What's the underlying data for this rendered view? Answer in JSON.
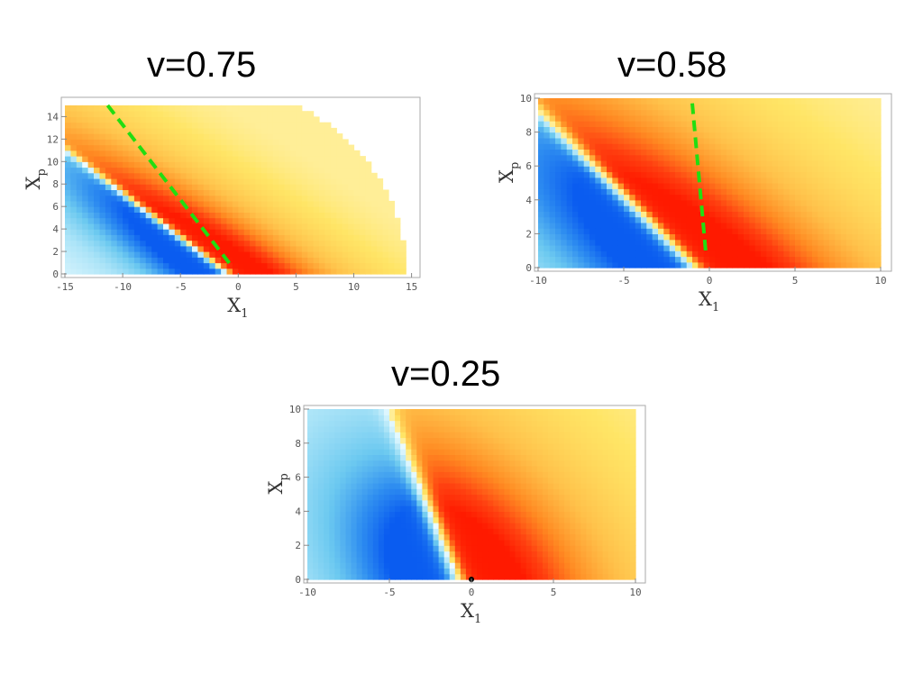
{
  "chart_data": [
    {
      "type": "heatmap",
      "title": "v=0.75",
      "xlabel": "X",
      "xlabel_sub": "1",
      "ylabel": "X",
      "ylabel_sub": "p",
      "xlim": [
        -15,
        15
      ],
      "ylim": [
        0,
        15
      ],
      "xticks": [
        "-15",
        "-10",
        "-5",
        "0",
        "5",
        "10",
        "15"
      ],
      "yticks": [
        "0",
        "2",
        "4",
        "6",
        "8",
        "10",
        "12",
        "14"
      ],
      "xtick_values": [
        -15,
        -10,
        -5,
        0,
        5,
        10,
        15
      ],
      "ytick_values": [
        0,
        2,
        4,
        6,
        8,
        10,
        12,
        14
      ],
      "velocity": 0.75,
      "cone_outer_radius": 16.5,
      "dashed_line": {
        "color": "#22dd11",
        "x": [
          -11.3,
          -0.5
        ],
        "y": [
          15,
          0.6
        ]
      },
      "colors": {
        "negative": "#0a5cf0",
        "positive": "#ff1a00",
        "far_positive": "#ffe566",
        "far_negative": "#eefcff",
        "dashed": "#22dd11"
      }
    },
    {
      "type": "heatmap",
      "title": "v=0.58",
      "xlabel": "X",
      "xlabel_sub": "1",
      "ylabel": "X",
      "ylabel_sub": "p",
      "xlim": [
        -10,
        10
      ],
      "ylim": [
        0,
        10
      ],
      "xticks": [
        "-10",
        "-5",
        "0",
        "5",
        "10"
      ],
      "yticks": [
        "0",
        "2",
        "4",
        "6",
        "8",
        "10"
      ],
      "xtick_values": [
        -10,
        -5,
        0,
        5,
        10
      ],
      "ytick_values": [
        0,
        2,
        4,
        6,
        8,
        10
      ],
      "velocity": 0.58,
      "dashed_line": {
        "color": "#22dd11",
        "x": [
          -1.0,
          -0.2
        ],
        "y": [
          9.7,
          0.8
        ]
      },
      "colors": {
        "negative": "#0a5cf0",
        "positive": "#ff1a00",
        "far_positive": "#ffe566",
        "far_negative": "#eefcff",
        "dashed": "#22dd11"
      }
    },
    {
      "type": "heatmap",
      "title": "v=0.25",
      "xlabel": "X",
      "xlabel_sub": "1",
      "ylabel": "X",
      "ylabel_sub": "p",
      "xlim": [
        -10,
        10
      ],
      "ylim": [
        0,
        10
      ],
      "xticks": [
        "-10",
        "-5",
        "0",
        "5",
        "10"
      ],
      "yticks": [
        "0",
        "2",
        "4",
        "6",
        "8",
        "10"
      ],
      "xtick_values": [
        -10,
        -5,
        0,
        5,
        10
      ],
      "ytick_values": [
        0,
        2,
        4,
        6,
        8,
        10
      ],
      "velocity": 0.25,
      "marker_point": {
        "x": 0,
        "y": 0
      },
      "colors": {
        "negative": "#0a5cf0",
        "positive": "#ff1a00",
        "far_positive": "#ffe566",
        "far_negative": "#eefcff",
        "marker": "#000000"
      }
    }
  ]
}
